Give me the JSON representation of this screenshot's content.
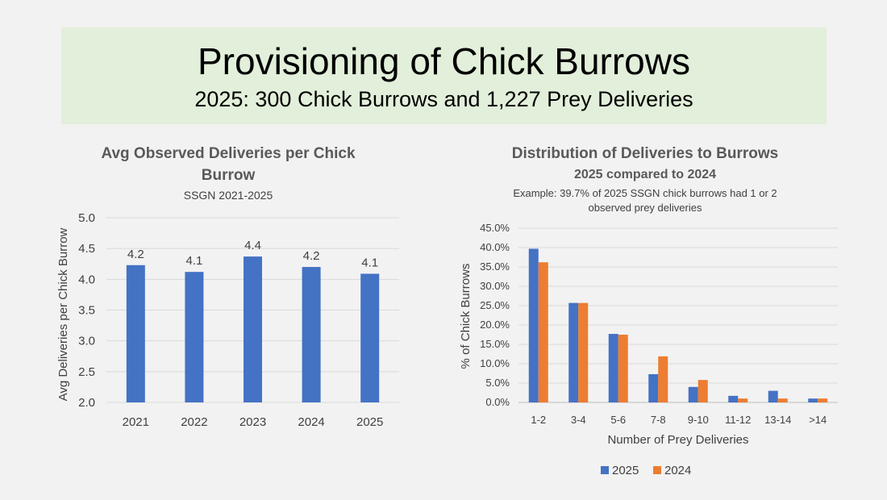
{
  "banner": {
    "title": "Provisioning of Chick Burrows",
    "subtitle": "2025: 300 Chick Burrows and 1,227 Prey Deliveries"
  },
  "chart_data": [
    {
      "type": "bar",
      "title_line1": "Avg Observed Deliveries per Chick",
      "title_line2": "Burrow",
      "subtitle": "SSGN 2021-2025",
      "ylabel": "Avg Deliveries per Chick Burrow",
      "xlabel": "",
      "categories": [
        "2021",
        "2022",
        "2023",
        "2024",
        "2025"
      ],
      "values": [
        4.23,
        4.12,
        4.37,
        4.2,
        4.09
      ],
      "data_labels": [
        "4.2",
        "4.1",
        "4.4",
        "4.2",
        "4.1"
      ],
      "ylim": [
        2.0,
        5.0
      ],
      "yticks": [
        "2.0",
        "2.5",
        "3.0",
        "3.5",
        "4.0",
        "4.5",
        "5.0"
      ],
      "color": "#4472c4",
      "grid": true
    },
    {
      "type": "bar",
      "title": "Distribution of Deliveries to Burrows",
      "subtitle": "2025 compared to 2024",
      "note_line1": "Example: 39.7% of 2025 SSGN chick burrows had 1 or 2",
      "note_line2": "observed prey deliveries",
      "xlabel": "Number of Prey Deliveries",
      "ylabel": "% of Chick Burrows",
      "categories": [
        "1-2",
        "3-4",
        "5-6",
        "7-8",
        "9-10",
        "11-12",
        "13-14",
        ">14"
      ],
      "series": [
        {
          "name": "2025",
          "color": "#4472c4",
          "values": [
            39.7,
            25.7,
            17.7,
            7.3,
            4.0,
            1.7,
            3.0,
            1.0
          ]
        },
        {
          "name": "2024",
          "color": "#ed7d31",
          "values": [
            36.2,
            25.7,
            17.5,
            11.9,
            5.8,
            1.0,
            1.0,
            1.0
          ]
        }
      ],
      "ylim": [
        0,
        45
      ],
      "yticks": [
        "0.0%",
        "5.0%",
        "10.0%",
        "15.0%",
        "20.0%",
        "25.0%",
        "30.0%",
        "35.0%",
        "40.0%",
        "45.0%"
      ],
      "legend_position": "bottom",
      "grid": true
    }
  ]
}
